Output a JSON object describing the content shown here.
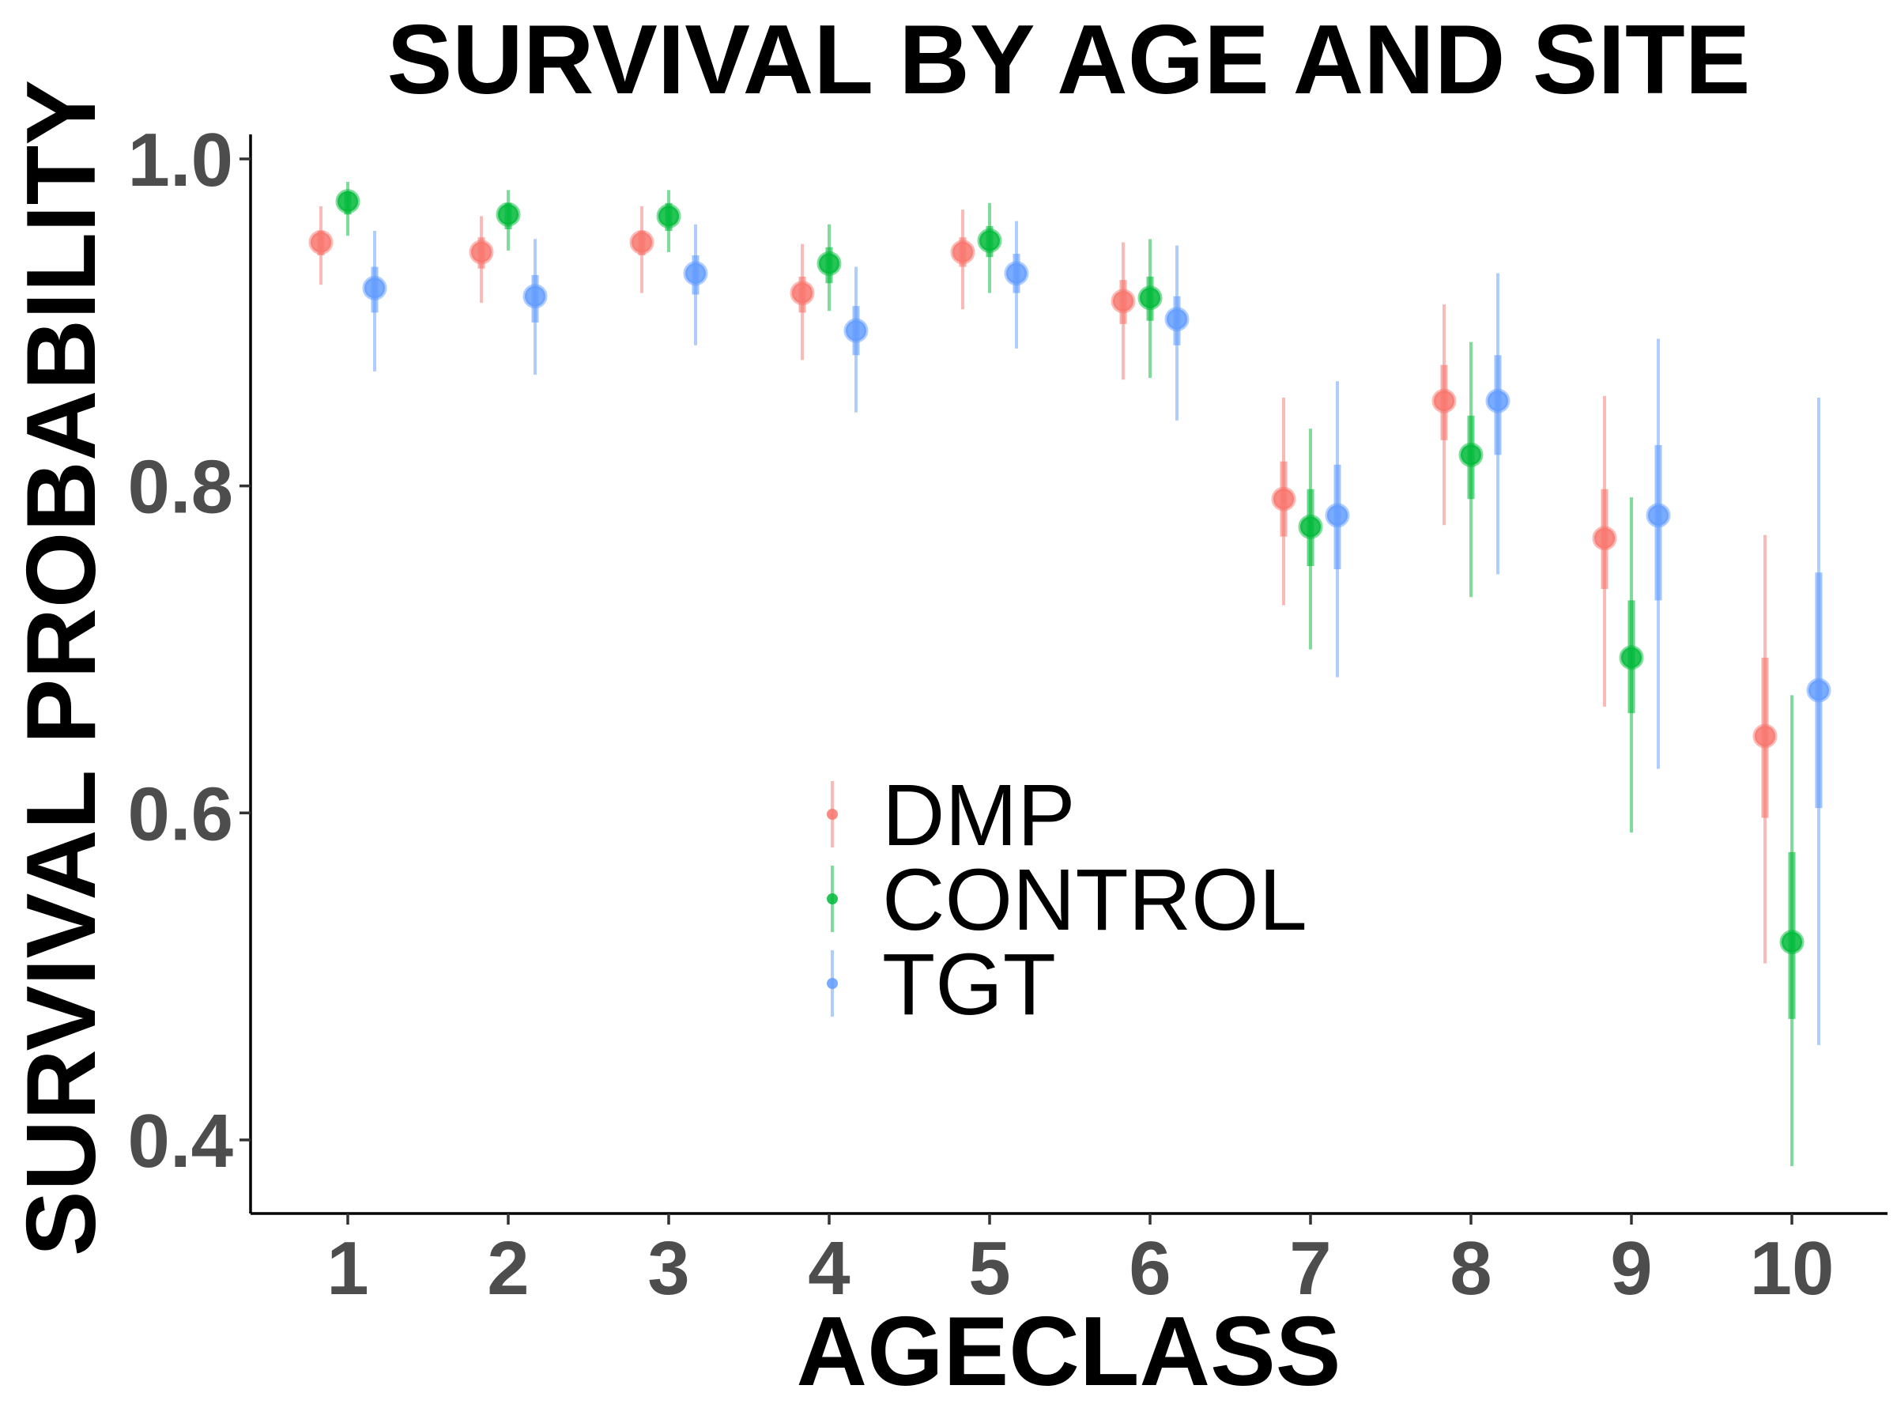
{
  "chart_data": {
    "type": "scatter",
    "subtype": "pointrange",
    "title": "SURVIVAL BY AGE AND SITE",
    "xlabel": "AGECLASS",
    "ylabel": "SURVIVAL PROBABILITY",
    "categories": [
      "1",
      "2",
      "3",
      "4",
      "5",
      "6",
      "7",
      "8",
      "9",
      "10"
    ],
    "ylim": [
      0.355,
      1.015
    ],
    "yticks": [
      0.4,
      0.6,
      0.8,
      1.0
    ],
    "ytick_labels": [
      "0.4",
      "0.6",
      "0.8",
      "1.0"
    ],
    "grid": false,
    "legend_position": "center",
    "series": [
      {
        "name": "DMP",
        "color": "#F8766D",
        "values": [
          0.949,
          0.943,
          0.949,
          0.918,
          0.943,
          0.913,
          0.792,
          0.852,
          0.768,
          0.647
        ],
        "inner_low": [
          0.941,
          0.933,
          0.941,
          0.906,
          0.934,
          0.899,
          0.769,
          0.828,
          0.737,
          0.597
        ],
        "inner_high": [
          0.956,
          0.952,
          0.956,
          0.928,
          0.952,
          0.926,
          0.815,
          0.874,
          0.798,
          0.695
        ],
        "outer_low": [
          0.923,
          0.912,
          0.918,
          0.877,
          0.908,
          0.865,
          0.727,
          0.776,
          0.665,
          0.508
        ],
        "outer_high": [
          0.971,
          0.965,
          0.971,
          0.948,
          0.969,
          0.949,
          0.854,
          0.911,
          0.855,
          0.77
        ]
      },
      {
        "name": "CONTROL",
        "color": "#00BA38",
        "values": [
          0.974,
          0.966,
          0.965,
          0.936,
          0.95,
          0.915,
          0.775,
          0.819,
          0.695,
          0.521
        ],
        "inner_low": [
          0.966,
          0.957,
          0.956,
          0.924,
          0.94,
          0.901,
          0.751,
          0.792,
          0.661,
          0.474
        ],
        "inner_high": [
          0.98,
          0.973,
          0.973,
          0.946,
          0.959,
          0.928,
          0.798,
          0.843,
          0.73,
          0.576
        ],
        "outer_low": [
          0.953,
          0.944,
          0.943,
          0.907,
          0.918,
          0.866,
          0.7,
          0.732,
          0.588,
          0.384
        ],
        "outer_high": [
          0.986,
          0.981,
          0.981,
          0.96,
          0.973,
          0.951,
          0.835,
          0.888,
          0.793,
          0.672
        ]
      },
      {
        "name": "TGT",
        "color": "#619CFF",
        "values": [
          0.921,
          0.916,
          0.93,
          0.895,
          0.93,
          0.902,
          0.782,
          0.852,
          0.782,
          0.675
        ],
        "inner_low": [
          0.906,
          0.9,
          0.917,
          0.88,
          0.918,
          0.886,
          0.749,
          0.819,
          0.73,
          0.603
        ],
        "inner_high": [
          0.934,
          0.929,
          0.941,
          0.91,
          0.942,
          0.916,
          0.813,
          0.88,
          0.825,
          0.747
        ],
        "outer_low": [
          0.87,
          0.868,
          0.886,
          0.845,
          0.884,
          0.84,
          0.683,
          0.746,
          0.627,
          0.458
        ],
        "outer_high": [
          0.956,
          0.951,
          0.96,
          0.934,
          0.962,
          0.947,
          0.864,
          0.93,
          0.89,
          0.854
        ]
      }
    ]
  }
}
